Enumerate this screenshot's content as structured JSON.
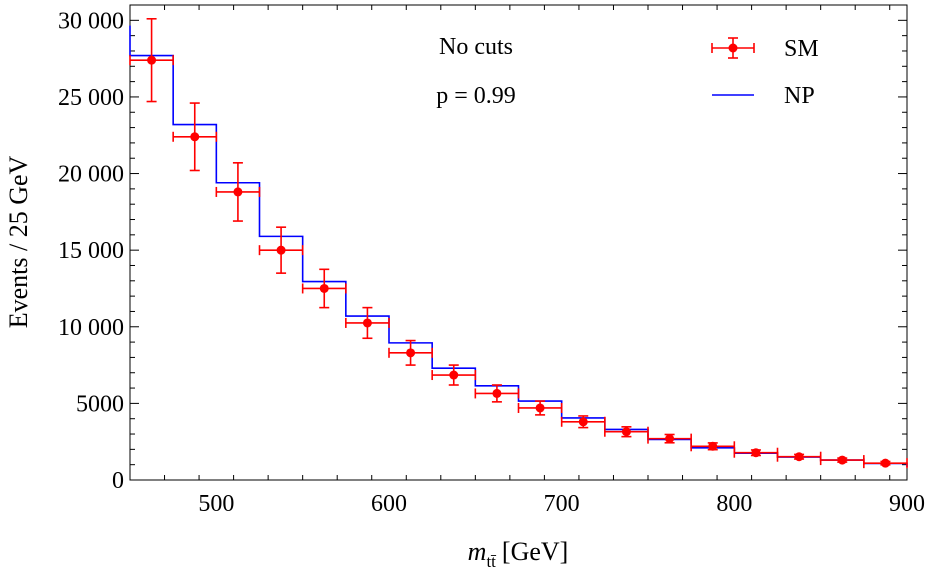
{
  "chart_data": {
    "type": "line",
    "title": "",
    "xlabel": "m_tt̄ [GeV]",
    "xlabel_var": "m",
    "xlabel_sub": "tt̄",
    "xlabel_unit": "[GeV]",
    "ylabel": "Events / 25 GeV",
    "xlim": [
      450,
      900
    ],
    "ylim": [
      0,
      31000
    ],
    "xticks": [
      500,
      600,
      700,
      800,
      900
    ],
    "xtick_labels": [
      "500",
      "600",
      "700",
      "800",
      "900"
    ],
    "yticks": [
      0,
      5000,
      10000,
      15000,
      20000,
      25000,
      30000
    ],
    "ytick_labels": [
      "0",
      "5000",
      "10 000",
      "15 000",
      "20 000",
      "25 000",
      "30 000"
    ],
    "annotations": [
      "No cuts",
      "p = 0.99"
    ],
    "legend": {
      "position": "top-right",
      "entries": [
        "SM",
        "NP"
      ]
    },
    "bin_edges": [
      450,
      475,
      500,
      525,
      550,
      575,
      600,
      625,
      650,
      675,
      700,
      725,
      750,
      775,
      800,
      825,
      850,
      875,
      900
    ],
    "series": [
      {
        "name": "SM",
        "style": "points-with-error-bars",
        "color": "#ff0000",
        "x": [
          462.5,
          487.5,
          512.5,
          537.5,
          562.5,
          587.5,
          612.5,
          637.5,
          662.5,
          687.5,
          712.5,
          737.5,
          762.5,
          787.5,
          812.5,
          837.5,
          862.5,
          887.5
        ],
        "values": [
          27400,
          22400,
          18800,
          15000,
          12500,
          10250,
          8300,
          6850,
          5650,
          4700,
          3800,
          3150,
          2700,
          2200,
          1780,
          1520,
          1300,
          1100
        ],
        "errors": [
          2700,
          2200,
          1900,
          1500,
          1250,
          1000,
          800,
          650,
          550,
          450,
          380,
          320,
          270,
          220,
          180,
          150,
          130,
          110
        ],
        "xerr": 12.5
      },
      {
        "name": "NP",
        "style": "step",
        "color": "#0000ff",
        "values": [
          27700,
          23200,
          19400,
          15900,
          12950,
          10700,
          8950,
          7300,
          6150,
          5150,
          4050,
          3300,
          2650,
          2100,
          1750,
          1500,
          1300,
          1080,
          850
        ]
      }
    ]
  }
}
